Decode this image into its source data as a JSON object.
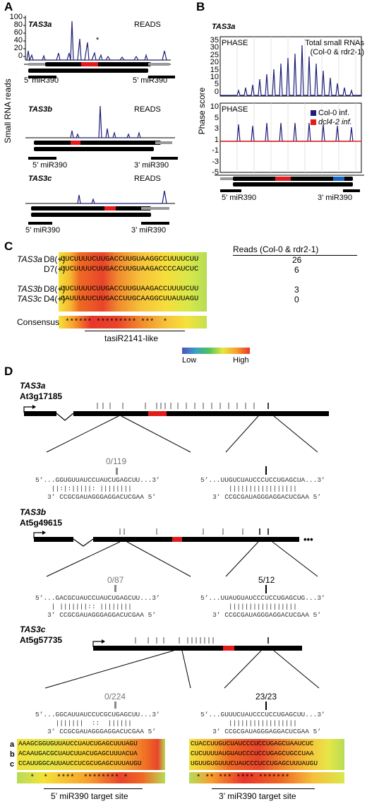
{
  "panels": {
    "A": "A",
    "B": "B",
    "C": "C",
    "D": "D"
  },
  "panelA": {
    "yaxis_title": "Small RNA reads",
    "ticks": [
      "100",
      "80",
      "60",
      "40",
      "20",
      "0"
    ],
    "genes": [
      {
        "name": "TAS3a",
        "reads": "READS"
      },
      {
        "name": "TAS3b",
        "reads": "READS"
      },
      {
        "name": "TAS3c",
        "reads": "READS"
      }
    ],
    "left_site": "5’ miR390",
    "right_site": "3’ miR390"
  },
  "panelB": {
    "title": "TAS3a",
    "yaxis_title": "Phase score",
    "top_ticks": [
      "35",
      "30",
      "25",
      "20",
      "15",
      "10",
      "5",
      "0"
    ],
    "bottom_ticks": [
      "10",
      "5",
      "3",
      "1",
      "-1",
      "-3",
      "-5"
    ],
    "phase": "PHASE",
    "total_line1": "Total small RNAs",
    "total_line2": "(Col-0 & rdr2-1)",
    "legend_col": "Col-0 inf.",
    "legend_dcl": "dcl4-2 inf.",
    "left_site": "5’ miR390",
    "right_site": "3’ miR390"
  },
  "panelC": {
    "reads_header": "Reads (Col-0 & rdr2-1)",
    "rows": [
      {
        "gene": "TAS3a",
        "id": "D8(+)",
        "seq": "UUCUUUUCUUGACCUUGUAAGGCCUUUUCUU",
        "reads": "26"
      },
      {
        "gene": "",
        "id": "D7(+)",
        "seq": "UUCUUUUCUUGACCUUGUAAGACCCCAUCUC",
        "reads": "6"
      },
      {
        "gene": "TAS3b",
        "id": "D8(+)",
        "seq": "UUCUUUUCUUGACCUUGUAAGACCUUUUCUU",
        "reads": "3"
      },
      {
        "gene": "TAS3c",
        "id": "D4(+)",
        "seq": "GAUUUUUCUUGACCUUGCAAGGCUUAUUAGU",
        "reads": "0"
      }
    ],
    "consensus_label": "Consensus",
    "consensus": " ****** ********* ***  *      ",
    "tasi_label": "tasiR2141-like",
    "scale_low": "Low",
    "scale_high": "High"
  },
  "panelD": {
    "genes": [
      {
        "name": "TAS3a",
        "locus": "At3g17185",
        "left_count": "0/119",
        "right_count": "",
        "left_top": "5’...GGUGUUAUCCUAUCUGAGCUU...3’",
        "left_mid": "    ||:|:|||||: ||||||||",
        "left_bot": "   3’ CCGCGAUAGGGAGGACUCGAA 5’",
        "right_top": "5’...UUGUCUAUCCCUCCUGAGCUA...3’",
        "right_mid": "       |||||||||||||||||",
        "right_bot": "   3’ CCGCGAUAGGGAGGACUCGAA 5’"
      },
      {
        "name": "TAS3b",
        "locus": "At5g49615",
        "left_count": "0/87",
        "right_count": "5/12",
        "left_top": "5’...GACGCUAUCCUAUCUGAGCUU...3’",
        "left_mid": "    | |||||||:: ||||||||",
        "left_bot": "   3’ CCGCGAUAGGGAGGACUCGAA 5’",
        "right_top": "5’...UUAUGUAUCCCUCCUGAGCUG...3’",
        "right_mid": "       |||||||||||||||||",
        "right_bot": "   3’ CCGCGAUAGGGAGGACUCGAA 5’"
      },
      {
        "name": "TAS3c",
        "locus": "At5g57735",
        "left_count": "0/224",
        "right_count": "23/23",
        "left_top": "5’...GGCAUUAUCCUCGCUGAGCUU...3’",
        "left_mid": "     |||||||  ::  ||||||",
        "left_bot": "   3’ CCGCGAUAGGGAGGACUCGAA 5’",
        "right_top": "5’...GUUUCUAUCCCUCCUGAGCUU...3’",
        "right_mid": "       |||||||||||||||||",
        "right_bot": "   3’ CCGCGAUAGGGAGGACUCGAA 5’"
      }
    ],
    "align_left": [
      {
        "id": "a",
        "seq": "AAAGCGGUGUUAUCCUAUCUGAGCUUUAGU"
      },
      {
        "id": "b",
        "seq": "ACAAUGACGCUAUCUUACUGAGCUUUACUA"
      },
      {
        "id": "c",
        "seq": "CCAUUGGCAUUAUCCUCGCUGAGCUUUAUGU"
      }
    ],
    "align_right": [
      {
        "seq": "CUACCUUGUCUAUCCCUCCUGAGCUAAUCUC"
      },
      {
        "seq": "CUCUUUUAUGUAUCCCUCCUGAGCUGCCUAA"
      },
      {
        "seq": "UGUUGUGUUUCUAUCCCUCCUGAGCUUUAUGU"
      }
    ],
    "cons_left": "  *  *  ****  ******** *",
    "cons_right": "* ** *** **** ******* ",
    "left_site_label": "5’ miR390 target site",
    "right_site_label": "3’ miR390 target site"
  }
}
